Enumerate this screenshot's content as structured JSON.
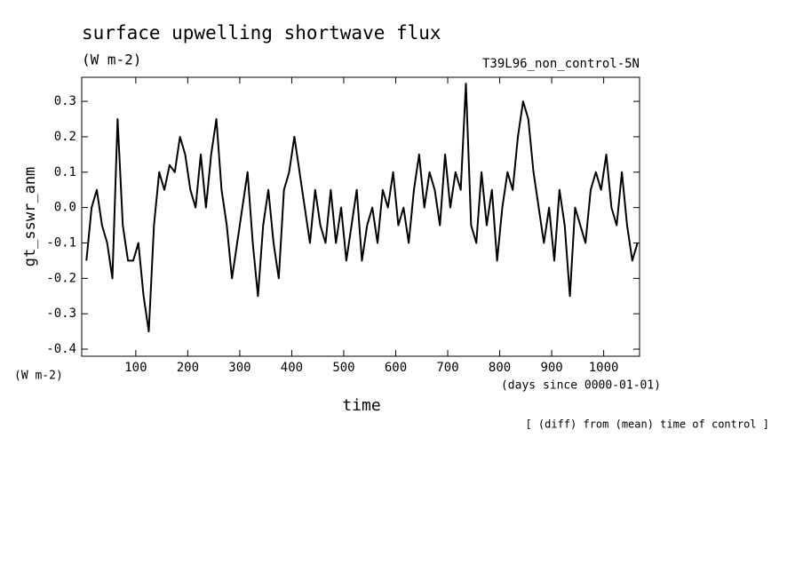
{
  "chart_data": {
    "type": "line",
    "title": "surface upwelling shortwave flux",
    "units": "(W m-2)",
    "run_label": "T39L96_non_control-5N",
    "ylabel": "gt_sswr_anm",
    "y_units": "(W m-2)",
    "xlabel": "time",
    "x_units": "(days since 0000-01-01)",
    "note": "[ (diff) from (mean) time of control ]",
    "xlim": [
      -4,
      1069
    ],
    "ylim": [
      -0.42,
      0.368
    ],
    "xticks": [
      100,
      200,
      300,
      400,
      500,
      600,
      700,
      800,
      900,
      1000
    ],
    "yticks": [
      0.3,
      0.2,
      0.1,
      {
        "value": 0,
        "label": "0.0"
      },
      -0.1,
      -0.2,
      -0.3,
      -0.4
    ],
    "series": [
      {
        "color": "#000000",
        "x": [
          5,
          15,
          25,
          35,
          45,
          55,
          65,
          75,
          85,
          95,
          105,
          115,
          125,
          135,
          145,
          155,
          165,
          175,
          185,
          195,
          205,
          215,
          225,
          235,
          245,
          255,
          265,
          275,
          285,
          295,
          305,
          315,
          325,
          335,
          345,
          355,
          365,
          375,
          385,
          395,
          405,
          415,
          425,
          435,
          445,
          455,
          465,
          475,
          485,
          495,
          505,
          515,
          525,
          535,
          545,
          555,
          565,
          575,
          585,
          595,
          605,
          615,
          625,
          635,
          645,
          655,
          665,
          675,
          685,
          695,
          705,
          715,
          725,
          735,
          745,
          755,
          765,
          775,
          785,
          795,
          805,
          815,
          825,
          835,
          845,
          855,
          865,
          875,
          885,
          895,
          905,
          915,
          925,
          935,
          945,
          955,
          965,
          975,
          985,
          995,
          1005,
          1015,
          1025,
          1035,
          1045,
          1055,
          1065
        ],
        "values": [
          -0.15,
          0.0,
          0.05,
          -0.05,
          -0.1,
          -0.2,
          0.25,
          -0.05,
          -0.15,
          -0.15,
          -0.1,
          -0.25,
          -0.35,
          -0.05,
          0.1,
          0.05,
          0.12,
          0.1,
          0.2,
          0.15,
          0.05,
          0.0,
          0.15,
          0.0,
          0.15,
          0.25,
          0.05,
          -0.05,
          -0.2,
          -0.1,
          0.0,
          0.1,
          -0.1,
          -0.25,
          -0.05,
          0.05,
          -0.1,
          -0.2,
          0.05,
          0.1,
          0.2,
          0.1,
          0.0,
          -0.1,
          0.05,
          -0.05,
          -0.1,
          0.05,
          -0.1,
          0.0,
          -0.15,
          -0.05,
          0.05,
          -0.15,
          -0.05,
          0.0,
          -0.1,
          0.05,
          0.0,
          0.1,
          -0.05,
          0.0,
          -0.1,
          0.05,
          0.15,
          0.0,
          0.1,
          0.05,
          -0.05,
          0.15,
          0.0,
          0.1,
          0.05,
          0.35,
          -0.05,
          -0.1,
          0.1,
          -0.05,
          0.05,
          -0.15,
          0.0,
          0.1,
          0.05,
          0.2,
          0.3,
          0.25,
          0.1,
          0.0,
          -0.1,
          0.0,
          -0.15,
          0.05,
          -0.05,
          -0.25,
          0.0,
          -0.05,
          -0.1,
          0.05,
          0.1,
          0.05,
          0.15,
          0.0,
          -0.05,
          0.1,
          -0.05,
          -0.15,
          -0.1
        ]
      }
    ]
  }
}
